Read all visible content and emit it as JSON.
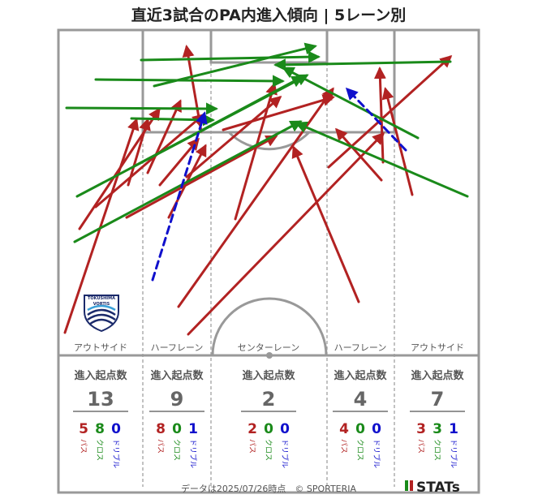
{
  "title": "直近3試合のPA内進入傾向 | 5レーン別",
  "lanes": [
    {
      "label": "アウトサイド",
      "header": "進入起点数",
      "total": "13",
      "pass": "5",
      "cross": "8",
      "dribble": "0"
    },
    {
      "label": "ハーフレーン",
      "header": "進入起点数",
      "total": "9",
      "pass": "8",
      "cross": "0",
      "dribble": "1"
    },
    {
      "label": "センターレーン",
      "header": "進入起点数",
      "total": "2",
      "pass": "2",
      "cross": "0",
      "dribble": "0"
    },
    {
      "label": "ハーフレーン",
      "header": "進入起点数",
      "total": "4",
      "pass": "4",
      "cross": "0",
      "dribble": "0"
    },
    {
      "label": "アウトサイド",
      "header": "進入起点数",
      "total": "7",
      "pass": "3",
      "cross": "3",
      "dribble": "1"
    }
  ],
  "type_labels": {
    "pass": "パス",
    "cross": "クロス",
    "dribble": "ドリブル"
  },
  "colors": {
    "pass": "#b22222",
    "cross": "#1a8a1a",
    "dribble": "#1010cc",
    "line": "#999999",
    "text": "#555555"
  },
  "logo": {
    "text_top": "TOKUSHIMA",
    "text_bottom": "VORTIS"
  },
  "footer": {
    "note": "データは2025/07/26時点　© SPORTERIA",
    "brand": "STATs"
  }
}
